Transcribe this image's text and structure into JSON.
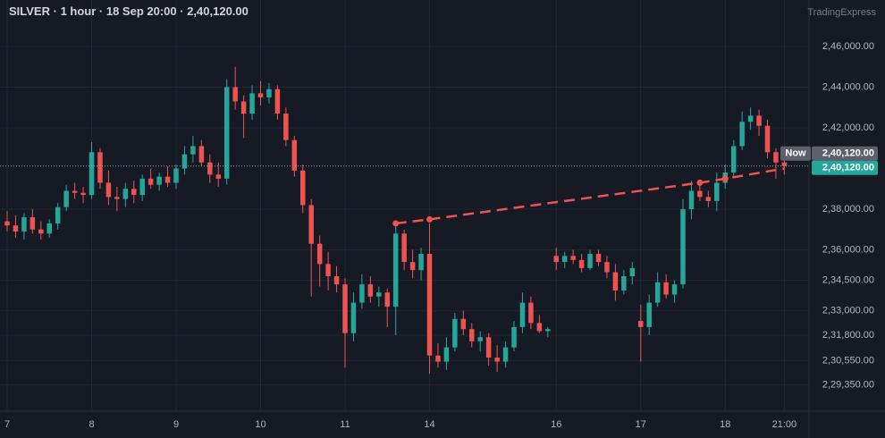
{
  "header": {
    "symbol": "SILVER",
    "interval": "1 hour",
    "time": "18 Sep 20:00",
    "brand": "TradingExpress"
  },
  "chart_data": {
    "type": "candlestick",
    "up_color": "#26a69a",
    "down_color": "#ef5350",
    "grid": true,
    "categories": [
      "7",
      null,
      null,
      null,
      null,
      null,
      null,
      null,
      null,
      null,
      "8",
      null,
      null,
      null,
      null,
      null,
      null,
      null,
      null,
      null,
      "9",
      null,
      null,
      null,
      null,
      null,
      null,
      null,
      null,
      null,
      "10",
      null,
      null,
      null,
      null,
      null,
      null,
      null,
      null,
      null,
      "11",
      null,
      null,
      null,
      null,
      null,
      null,
      null,
      null,
      null,
      "14",
      null,
      null,
      null,
      null,
      null,
      null,
      null,
      null,
      null,
      null,
      null,
      null,
      null,
      null,
      "16",
      null,
      null,
      null,
      null,
      null,
      null,
      null,
      null,
      null,
      "17",
      null,
      null,
      null,
      null,
      null,
      null,
      null,
      null,
      null,
      "18",
      null,
      null,
      null,
      null,
      null,
      null,
      "21:00"
    ],
    "open": [
      237400,
      237200,
      236900,
      237600,
      237000,
      236800,
      237300,
      238100,
      238900,
      238800,
      238700,
      240800,
      239300,
      238600,
      238500,
      239000,
      238700,
      239500,
      239200,
      239600,
      239300,
      240000,
      240700,
      241100,
      240300,
      239700,
      239500,
      244000,
      243300,
      242700,
      243700,
      243500,
      243900,
      242700,
      241400,
      239900,
      238200,
      236300,
      235300,
      234700,
      234300,
      231900,
      233400,
      234300,
      233700,
      233900,
      233200,
      236800,
      235400,
      235000,
      235800,
      230800,
      230500,
      231200,
      232600,
      232100,
      231500,
      231700,
      230700,
      230500,
      231200,
      232200,
      233400,
      232400,
      232000,
      235700,
      235400,
      235700,
      235500,
      235100,
      235800,
      235400,
      234900,
      234000,
      234700,
      232500,
      232200,
      233400,
      234400,
      233800,
      234300,
      238000,
      238900,
      238600,
      238400,
      239300,
      239800,
      241100,
      242300,
      242600,
      242100,
      240800,
      240300
    ],
    "high": [
      237900,
      237700,
      237800,
      238000,
      237400,
      237500,
      238300,
      239200,
      239300,
      239100,
      241300,
      241000,
      239900,
      239100,
      239300,
      239400,
      239700,
      240000,
      239800,
      240100,
      240200,
      241100,
      241600,
      241400,
      240700,
      240300,
      244400,
      245000,
      243600,
      244100,
      244300,
      244200,
      244100,
      243000,
      241600,
      240200,
      238500,
      236700,
      235900,
      235200,
      234600,
      233900,
      234800,
      234700,
      234200,
      234100,
      237200,
      237000,
      236000,
      236100,
      237300,
      231400,
      231700,
      232900,
      233000,
      232400,
      232000,
      231900,
      231300,
      231500,
      232500,
      233900,
      233700,
      232800,
      232200,
      236100,
      235900,
      236000,
      235800,
      236000,
      236000,
      235700,
      235300,
      235000,
      235400,
      233300,
      233800,
      234900,
      234800,
      234500,
      238500,
      239400,
      239300,
      238900,
      239800,
      240200,
      241400,
      242800,
      243000,
      242900,
      242400,
      241000,
      240500
    ],
    "low": [
      236900,
      236600,
      236500,
      236800,
      236500,
      236600,
      237000,
      237900,
      238500,
      238300,
      238500,
      239000,
      238200,
      237900,
      238100,
      238300,
      238400,
      239000,
      238900,
      239100,
      239000,
      239700,
      240300,
      240100,
      239300,
      239100,
      239200,
      242900,
      241500,
      242400,
      243100,
      243200,
      242400,
      241100,
      239600,
      237800,
      233700,
      234200,
      234000,
      233900,
      230200,
      231500,
      233100,
      233400,
      233200,
      232200,
      231800,
      235000,
      234600,
      234500,
      229900,
      230200,
      230100,
      231000,
      231800,
      231200,
      231000,
      230300,
      230000,
      230200,
      231000,
      231900,
      232100,
      231900,
      231700,
      235000,
      235100,
      235300,
      234900,
      235000,
      235200,
      234600,
      233500,
      233800,
      234300,
      230500,
      231800,
      233200,
      233600,
      233400,
      234100,
      237500,
      238400,
      238100,
      237900,
      239000,
      239600,
      240900,
      241900,
      241600,
      240500,
      239500,
      239700
    ],
    "close": [
      237200,
      236900,
      237600,
      237000,
      236800,
      237300,
      238100,
      238900,
      238800,
      238700,
      240800,
      239300,
      238600,
      238500,
      239000,
      238700,
      239500,
      239200,
      239600,
      239300,
      240000,
      240700,
      241100,
      240300,
      239700,
      239500,
      244000,
      243300,
      242700,
      243700,
      243500,
      243900,
      242700,
      241400,
      239900,
      238200,
      236300,
      235300,
      234700,
      234300,
      231900,
      233400,
      234300,
      233700,
      233900,
      233200,
      236800,
      235400,
      235000,
      235800,
      230800,
      230500,
      231200,
      232600,
      232100,
      231500,
      231700,
      230700,
      230500,
      231200,
      232200,
      233400,
      232400,
      232000,
      232100,
      235400,
      235700,
      235500,
      235100,
      235800,
      235400,
      234900,
      234000,
      234700,
      235100,
      232200,
      233400,
      234400,
      233800,
      234300,
      238000,
      238900,
      238600,
      238400,
      239300,
      239800,
      241100,
      242300,
      242600,
      242100,
      240800,
      240300,
      240120
    ],
    "ylim": [
      228150,
      246970
    ],
    "yticks": [
      {
        "value": 229350,
        "label": "2,29,350.00"
      },
      {
        "value": 230550,
        "label": "2,30,550.00"
      },
      {
        "value": 231800,
        "label": "2,31,800.00"
      },
      {
        "value": 233000,
        "label": "2,33,000.00"
      },
      {
        "value": 234500,
        "label": "2,34,500.00"
      },
      {
        "value": 236000,
        "label": "2,36,000.00"
      },
      {
        "value": 238000,
        "label": "2,38,000.00"
      },
      {
        "value": 242000,
        "label": "2,42,000.00"
      },
      {
        "value": 244000,
        "label": "2,44,000.00"
      },
      {
        "value": 246000,
        "label": "2,46,000.00"
      }
    ],
    "last_price": {
      "value": 240120,
      "label": "2,40,120.00"
    },
    "now_label": "Now",
    "trend_line": {
      "color": "#ef5350",
      "x": [
        46,
        50,
        82,
        85,
        92
      ],
      "values": [
        237300,
        237500,
        239300,
        239500,
        240000
      ]
    }
  }
}
